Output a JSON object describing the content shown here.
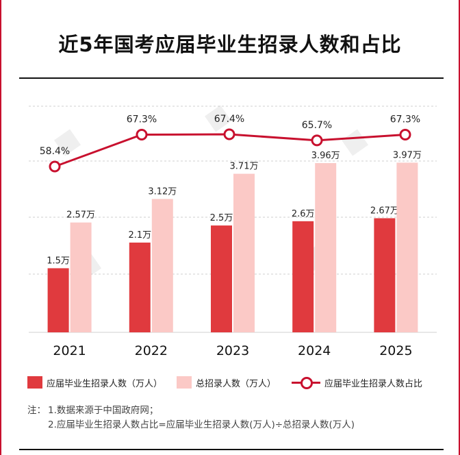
{
  "title": "近5年国考应届毕业生招录人数和占比",
  "chart_data": {
    "type": "bar",
    "categories": [
      "2021",
      "2022",
      "2023",
      "2024",
      "2025"
    ],
    "series": [
      {
        "name": "应届毕业生招录人数（万人）",
        "type": "bar",
        "values": [
          1.5,
          2.1,
          2.5,
          2.6,
          2.67
        ],
        "labels": [
          "1.5万",
          "2.1万",
          "2.5万",
          "2.6万",
          "2.67万"
        ],
        "color": "#e03a3e"
      },
      {
        "name": "总招录人数（万人）",
        "type": "bar",
        "values": [
          2.57,
          3.12,
          3.71,
          3.96,
          3.97
        ],
        "labels": [
          "2.57万",
          "3.12万",
          "3.71万",
          "3.96万",
          "3.97万"
        ],
        "color": "#fbc9c6"
      },
      {
        "name": "应届毕业生招录人数占比",
        "type": "line",
        "values": [
          58.4,
          67.3,
          67.4,
          65.7,
          67.3
        ],
        "labels": [
          "58.4%",
          "67.3%",
          "67.4%",
          "65.7%",
          "67.3%"
        ],
        "color": "#c8102e"
      }
    ],
    "ylim": [
      0,
      5.5
    ],
    "grid": true,
    "legend_position": "bottom"
  },
  "legend": {
    "item1": "应届毕业生招录人数（万人）",
    "item2": "总招录人数（万人）",
    "item3": "应届毕业生招录人数占比"
  },
  "notes": {
    "label": "注：",
    "line1": "1.数据来源于中国政府网；",
    "line2": "2.应届毕业生招录人数占比=应届毕业生招录人数(万人)÷总招录人数(万人)"
  }
}
